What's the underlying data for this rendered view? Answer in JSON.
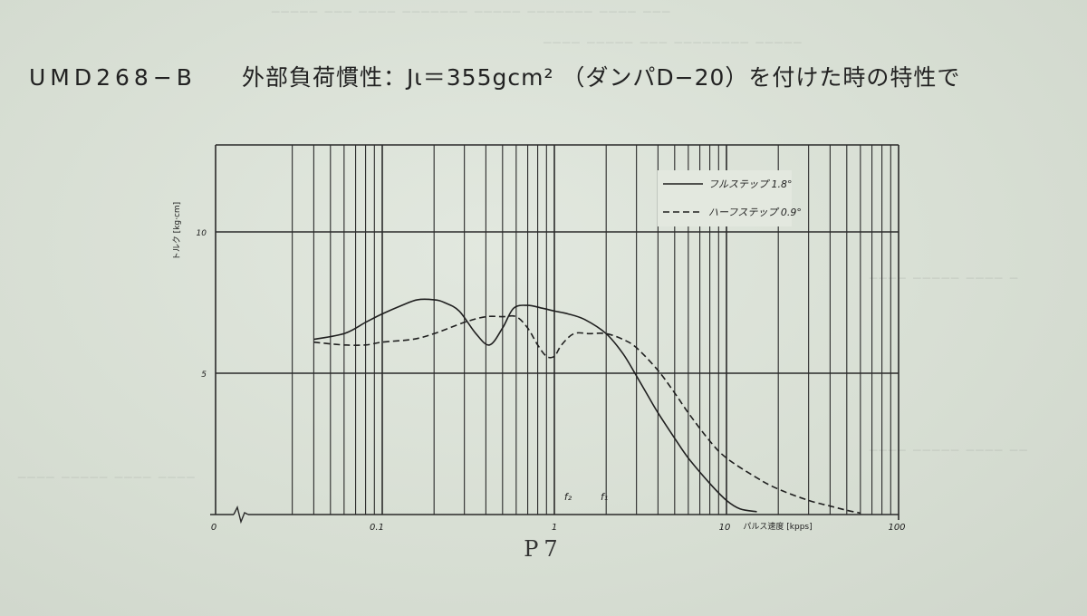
{
  "header": {
    "model": "UMD268−B",
    "spec": "外部負荷慣性：Jι＝355gcm² （ダンパD−20）を付けた時の特性で"
  },
  "footer": {
    "page_label": "P7"
  },
  "chart_data": {
    "type": "line",
    "title": "",
    "xlabel": "パルス速度 [kpps]",
    "ylabel": "トルク [kg·cm]",
    "x_scale": "log",
    "xlim": [
      0.03,
      100
    ],
    "ylim": [
      0,
      15
    ],
    "x_tick_labels": [
      {
        "x": 0.01,
        "label": "0"
      },
      {
        "x": 0.1,
        "label": "0.1"
      },
      {
        "x": 1,
        "label": "1"
      },
      {
        "x": 10,
        "label": "10"
      },
      {
        "x": 100,
        "label": "100"
      }
    ],
    "y_tick_labels": [
      {
        "y": 5,
        "label": "5"
      },
      {
        "y": 10,
        "label": "10"
      }
    ],
    "grid": true,
    "legend": "top-right",
    "annotations": [
      {
        "x": 1.2,
        "label": "f₂"
      },
      {
        "x": 1.95,
        "label": "f₁"
      }
    ],
    "series": [
      {
        "name": "フルステップ 1.8°",
        "style": "solid",
        "x": [
          0.04,
          0.06,
          0.08,
          0.1,
          0.13,
          0.16,
          0.2,
          0.23,
          0.28,
          0.35,
          0.42,
          0.5,
          0.58,
          0.7,
          0.85,
          1.0,
          1.2,
          1.5,
          2.0,
          2.5,
          3.0,
          3.5,
          4.0,
          5.0,
          6.0,
          8.0,
          10.0,
          12.0,
          15.0
        ],
        "values": [
          6.2,
          6.4,
          6.8,
          7.1,
          7.4,
          7.6,
          7.6,
          7.5,
          7.2,
          6.4,
          6.0,
          6.6,
          7.3,
          7.4,
          7.3,
          7.2,
          7.1,
          6.9,
          6.4,
          5.7,
          4.9,
          4.2,
          3.6,
          2.7,
          2.0,
          1.1,
          0.5,
          0.2,
          0.1
        ]
      },
      {
        "name": "ハーフステップ 0.9°",
        "style": "dashed",
        "x": [
          0.04,
          0.06,
          0.08,
          0.1,
          0.15,
          0.2,
          0.3,
          0.4,
          0.5,
          0.6,
          0.7,
          0.8,
          0.9,
          1.0,
          1.1,
          1.3,
          1.6,
          2.0,
          2.5,
          3.0,
          4.0,
          5.0,
          6.0,
          8.0,
          10.0,
          15.0,
          20.0,
          30.0,
          40.0,
          50.0,
          60.0
        ],
        "values": [
          6.1,
          6.0,
          6.0,
          6.1,
          6.2,
          6.4,
          6.8,
          7.0,
          7.0,
          7.0,
          6.6,
          6.0,
          5.6,
          5.6,
          6.0,
          6.4,
          6.4,
          6.4,
          6.2,
          5.9,
          5.1,
          4.3,
          3.6,
          2.6,
          2.0,
          1.3,
          0.9,
          0.5,
          0.3,
          0.15,
          0.05
        ]
      }
    ]
  }
}
